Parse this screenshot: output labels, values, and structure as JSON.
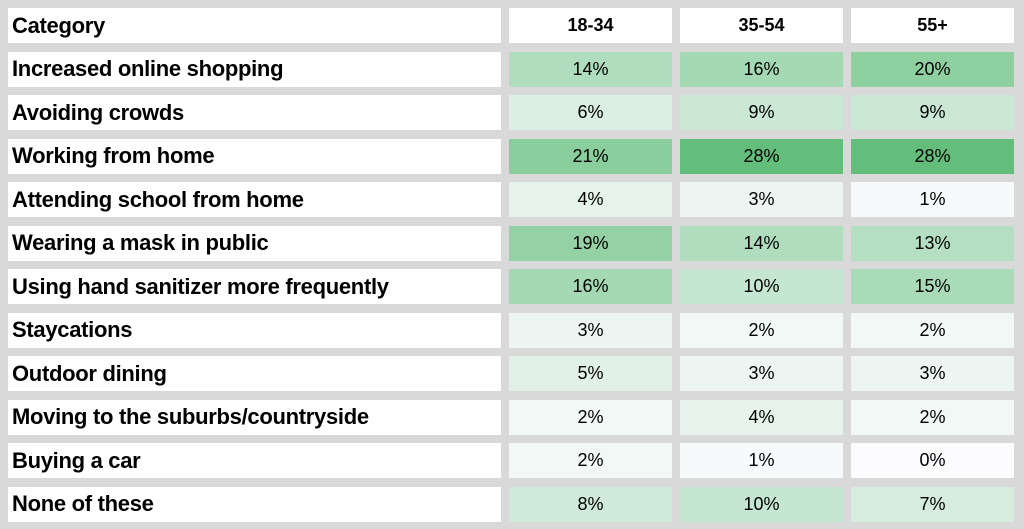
{
  "page": {
    "background_color": "#D9D9D9",
    "cell_background_color": "#FFFFFF",
    "text_color": "#000000"
  },
  "chart_data": {
    "type": "heatmap",
    "title": "Category",
    "column_categories": [
      "18-34",
      "35-54",
      "55+"
    ],
    "rows": [
      {
        "label": "Increased online shopping",
        "values": [
          14,
          16,
          20
        ]
      },
      {
        "label": "Avoiding crowds",
        "values": [
          6,
          9,
          9
        ]
      },
      {
        "label": "Working from home",
        "values": [
          21,
          28,
          28
        ]
      },
      {
        "label": "Attending school from home",
        "values": [
          4,
          3,
          1
        ]
      },
      {
        "label": "Wearing a mask in public",
        "values": [
          19,
          14,
          13
        ]
      },
      {
        "label": "Using hand sanitizer more frequently",
        "values": [
          16,
          10,
          15
        ]
      },
      {
        "label": "Staycations",
        "values": [
          3,
          2,
          2
        ]
      },
      {
        "label": "Outdoor dining",
        "values": [
          5,
          3,
          3
        ]
      },
      {
        "label": "Moving to the suburbs/countryside",
        "values": [
          2,
          4,
          2
        ]
      },
      {
        "label": "Buying a car",
        "values": [
          2,
          1,
          0
        ]
      },
      {
        "label": "None of these",
        "values": [
          8,
          10,
          7
        ]
      }
    ],
    "value_suffix": "%",
    "color_scale": {
      "min_value": 0,
      "max_value": 28,
      "min_color": "#FCFCFF",
      "max_color": "#63BE7B"
    },
    "legend_position": "none",
    "grid": false
  }
}
